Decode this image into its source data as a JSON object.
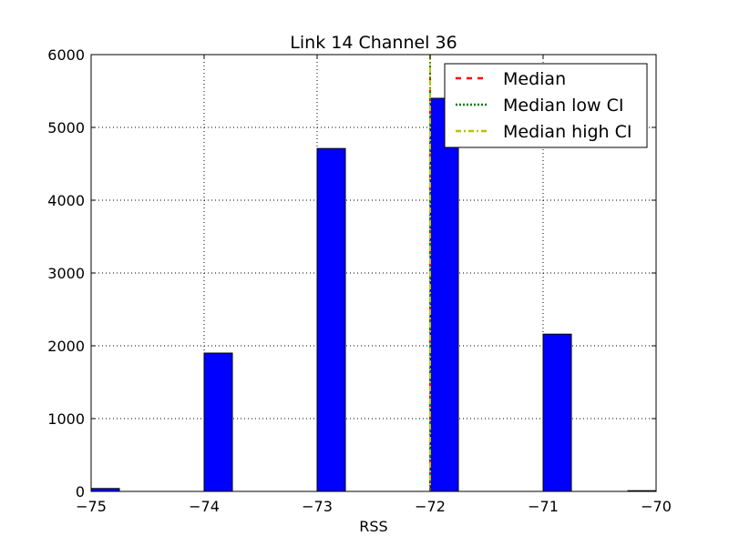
{
  "chart_data": {
    "type": "bar",
    "title": "Link 14 Channel 36",
    "xlabel": "RSS",
    "ylabel": "",
    "xlim": [
      -75,
      -70
    ],
    "ylim": [
      0,
      6000
    ],
    "xticks": [
      -75,
      -74,
      -73,
      -72,
      -71,
      -70
    ],
    "xtick_labels": [
      "−75",
      "−74",
      "−73",
      "−72",
      "−71",
      "−70"
    ],
    "yticks": [
      0,
      1000,
      2000,
      3000,
      4000,
      5000,
      6000
    ],
    "ytick_labels": [
      "0",
      "1000",
      "2000",
      "3000",
      "4000",
      "5000",
      "6000"
    ],
    "grid": true,
    "bar_color": "#0000ff",
    "bin_width": 0.25,
    "bins": [
      {
        "x0": -75.0,
        "count": 40
      },
      {
        "x0": -74.0,
        "count": 1900
      },
      {
        "x0": -73.0,
        "count": 4710
      },
      {
        "x0": -72.0,
        "count": 5400
      },
      {
        "x0": -71.0,
        "count": 2160
      },
      {
        "x0": -70.25,
        "count": 10
      }
    ],
    "vlines": [
      {
        "name": "Median",
        "x": -72,
        "color": "#ff0000",
        "style": "dashed"
      },
      {
        "name": "Median low CI",
        "x": -72,
        "color": "#008000",
        "style": "dotted"
      },
      {
        "name": "Median high CI",
        "x": -72,
        "color": "#bfbf00",
        "style": "dashdot"
      }
    ],
    "legend": {
      "position": "top-right",
      "entries": [
        "Median",
        "Median low CI",
        "Median high CI"
      ]
    }
  }
}
